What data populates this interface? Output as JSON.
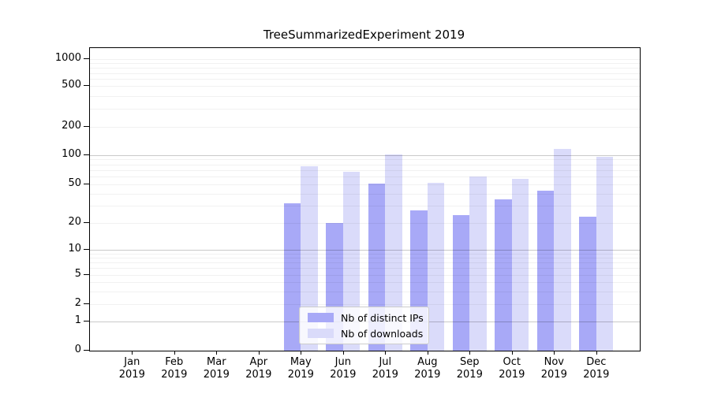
{
  "chart_data": {
    "type": "bar",
    "title": "TreeSummarizedExperiment 2019",
    "categories": [
      "Jan 2019",
      "Feb 2019",
      "Mar 2019",
      "Apr 2019",
      "May 2019",
      "Jun 2019",
      "Jul 2019",
      "Aug 2019",
      "Sep 2019",
      "Oct 2019",
      "Nov 2019",
      "Dec 2019"
    ],
    "series": [
      {
        "name": "Nb of distinct IPs",
        "color": "#a8a9f7",
        "values": [
          0,
          0,
          0,
          0,
          32,
          20,
          51,
          27,
          24,
          35,
          43,
          23
        ]
      },
      {
        "name": "Nb of downloads",
        "color": "#dadbfa",
        "values": [
          0,
          0,
          0,
          0,
          77,
          67,
          101,
          52,
          60,
          57,
          115,
          96
        ]
      }
    ],
    "xlabel": "",
    "ylabel": "",
    "yscale": "symlog",
    "yticks": [
      0,
      1,
      2,
      5,
      10,
      20,
      50,
      100,
      200,
      500,
      1000
    ],
    "ylim": [
      0,
      1300
    ],
    "grid": {
      "major_lines": [
        1,
        10,
        100
      ],
      "tick_lines": [
        2,
        5,
        20,
        50,
        200,
        500,
        1000
      ],
      "minor_lines": [
        3,
        4,
        6,
        7,
        8,
        9,
        30,
        40,
        60,
        70,
        80,
        90,
        300,
        400,
        600,
        700,
        800,
        900
      ]
    },
    "legend": {
      "position": "lower center"
    }
  }
}
